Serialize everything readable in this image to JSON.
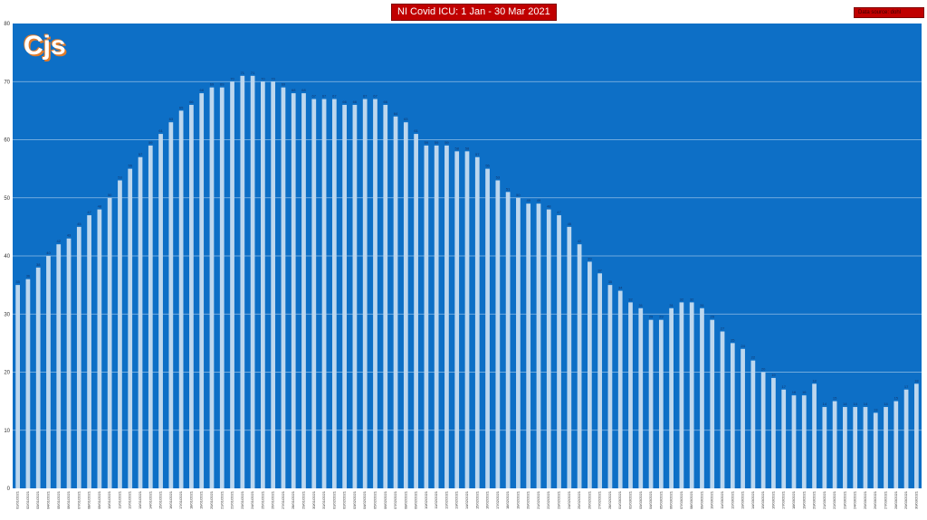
{
  "chart_data": {
    "type": "bar",
    "title": "NI Covid ICU: 1 Jan - 30 Mar 2021",
    "source_label": "Data source: dohl",
    "logo_text": "Cjs",
    "ylim": [
      0,
      80
    ],
    "yticks": [
      0,
      10,
      20,
      30,
      40,
      50,
      60,
      70,
      80
    ],
    "grid": true,
    "legend": "none",
    "bar_color": "#bdd7ee",
    "plot_bg": "#0d6fc6",
    "categories": [
      "01/01/2021",
      "02/01/2021",
      "03/01/2021",
      "04/01/2021",
      "05/01/2021",
      "06/01/2021",
      "07/01/2021",
      "08/01/2021",
      "09/01/2021",
      "10/01/2021",
      "11/01/2021",
      "12/01/2021",
      "13/01/2021",
      "14/01/2021",
      "15/01/2021",
      "16/01/2021",
      "17/01/2021",
      "18/01/2021",
      "19/01/2021",
      "20/01/2021",
      "21/01/2021",
      "22/01/2021",
      "23/01/2021",
      "24/01/2021",
      "25/01/2021",
      "26/01/2021",
      "27/01/2021",
      "28/01/2021",
      "29/01/2021",
      "30/01/2021",
      "31/01/2021",
      "01/02/2021",
      "02/02/2021",
      "03/02/2021",
      "04/02/2021",
      "05/02/2021",
      "06/02/2021",
      "07/02/2021",
      "08/02/2021",
      "09/02/2021",
      "10/02/2021",
      "11/02/2021",
      "12/02/2021",
      "13/02/2021",
      "14/02/2021",
      "15/02/2021",
      "16/02/2021",
      "17/02/2021",
      "18/02/2021",
      "19/02/2021",
      "20/02/2021",
      "21/02/2021",
      "22/02/2021",
      "23/02/2021",
      "24/02/2021",
      "25/02/2021",
      "26/02/2021",
      "27/02/2021",
      "28/02/2021",
      "01/03/2021",
      "02/03/2021",
      "03/03/2021",
      "04/03/2021",
      "05/03/2021",
      "06/03/2021",
      "07/03/2021",
      "08/03/2021",
      "09/03/2021",
      "10/03/2021",
      "11/03/2021",
      "12/03/2021",
      "13/03/2021",
      "14/03/2021",
      "15/03/2021",
      "16/03/2021",
      "17/03/2021",
      "18/03/2021",
      "19/03/2021",
      "20/03/2021",
      "21/03/2021",
      "22/03/2021",
      "23/03/2021",
      "24/03/2021",
      "25/03/2021",
      "26/03/2021",
      "27/03/2021",
      "28/03/2021",
      "29/03/2021",
      "30/03/2021"
    ],
    "values": [
      35,
      36,
      38,
      40,
      42,
      43,
      45,
      47,
      48,
      50,
      53,
      55,
      57,
      59,
      61,
      63,
      65,
      66,
      68,
      69,
      69,
      70,
      71,
      71,
      70,
      70,
      69,
      68,
      68,
      67,
      67,
      67,
      66,
      66,
      67,
      67,
      66,
      64,
      63,
      61,
      59,
      59,
      59,
      58,
      58,
      57,
      55,
      53,
      51,
      50,
      49,
      49,
      48,
      47,
      45,
      42,
      39,
      37,
      35,
      34,
      32,
      31,
      29,
      29,
      31,
      32,
      32,
      31,
      29,
      27,
      25,
      24,
      22,
      20,
      19,
      17,
      16,
      16,
      18,
      14,
      15,
      14,
      14,
      14,
      13,
      14,
      15,
      17,
      18
    ]
  }
}
